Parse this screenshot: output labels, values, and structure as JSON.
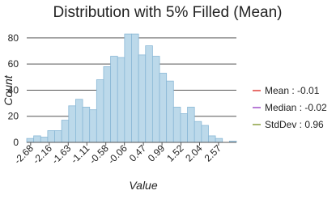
{
  "chart_data": {
    "type": "histogram",
    "title": "Distribution with 5% Filled (Mean)",
    "x_label": "Value",
    "y_label": "Count",
    "bins": [
      -2.79,
      -2.595,
      -2.399,
      -2.204,
      -2.009,
      -1.814,
      -1.618,
      -1.423,
      -1.228,
      -1.032,
      -0.837,
      -0.642,
      -0.446,
      -0.251,
      -0.056,
      0.14,
      0.335,
      0.53,
      0.725,
      0.921,
      1.116,
      1.311,
      1.507,
      1.702,
      1.897,
      2.093,
      2.288,
      2.483,
      2.678,
      2.874,
      3.069
    ],
    "values": [
      3,
      5,
      4,
      9,
      9,
      17,
      28,
      33,
      27,
      25,
      48,
      58,
      66,
      65,
      83,
      83,
      67,
      74,
      66,
      53,
      47,
      27,
      22,
      27,
      16,
      13,
      5,
      3,
      0,
      1
    ],
    "color": "#bcd9ea",
    "edge_color": "#8ab8d6",
    "xlim": [
      -2.79,
      3.069
    ],
    "xticks": [
      -2.68,
      -2.16,
      -1.63,
      -1.11,
      -0.58,
      -0.06,
      0.47,
      0.99,
      1.52,
      2.04,
      2.57
    ],
    "ylim": [
      0,
      88
    ],
    "yticks": [
      0,
      20,
      40,
      60,
      80
    ],
    "grid": true,
    "legend": [
      {
        "name": "Mean : -0.01",
        "color": "#e0403a"
      },
      {
        "name": "Median : -0.02",
        "color": "#a050c8"
      },
      {
        "name": "StdDev : 0.96",
        "color": "#8aa040"
      }
    ]
  }
}
